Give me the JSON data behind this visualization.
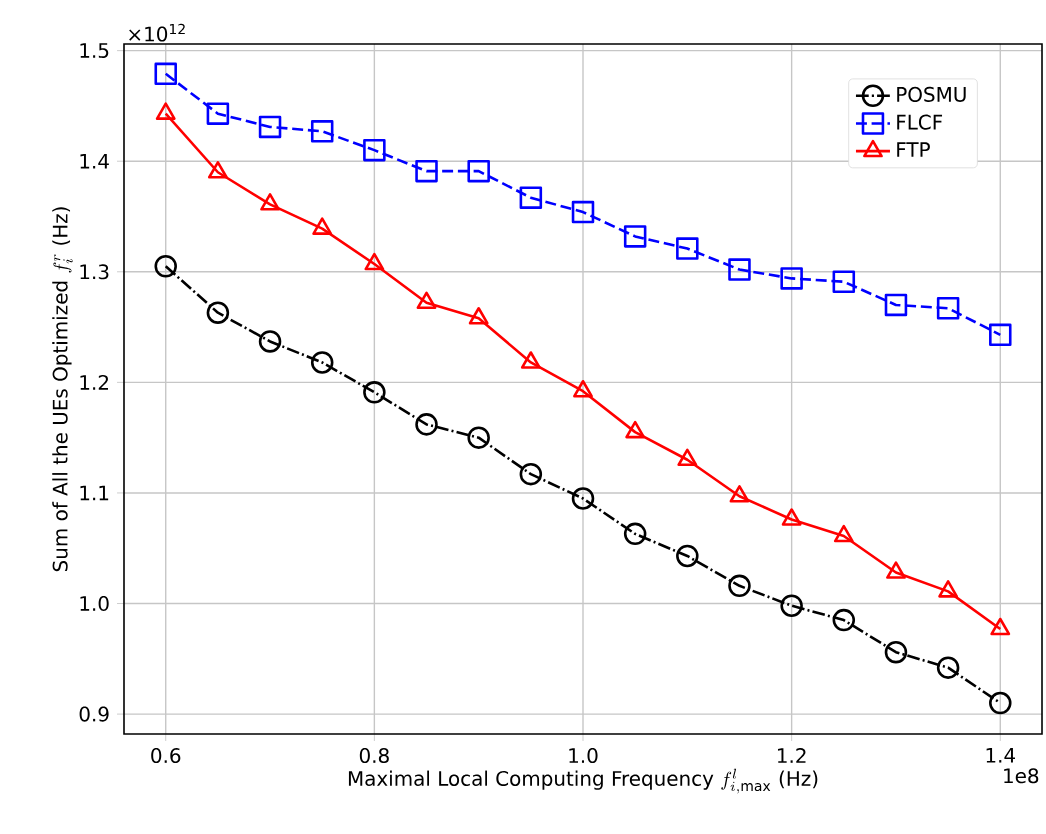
{
  "chart_data": {
    "type": "line",
    "xlabel": "\\text{Maximal Local Computing Frequency }f^{l}_{i,\\max}\\text{ (Hz)}",
    "ylabel": "\\text{Sum of All the UEs Optimized }f^{r}_{i}\\text{ (Hz)}",
    "annotations": [
      "×10$^{12}$",
      "1e8"
    ],
    "x": [
      0.6,
      0.65,
      0.7,
      0.75,
      0.8,
      0.85,
      0.9,
      0.95,
      1.0,
      1.05,
      1.1,
      1.15,
      1.2,
      1.25,
      1.3,
      1.35,
      1.4
    ],
    "series": [
      {
        "name": "POSMU",
        "color": "#000000",
        "marker": "circle",
        "line_style": "dashdot",
        "values": [
          1.305,
          1.263,
          1.237,
          1.218,
          1.191,
          1.162,
          1.15,
          1.117,
          1.095,
          1.063,
          1.043,
          1.016,
          0.998,
          0.985,
          0.956,
          0.942,
          0.91
        ]
      },
      {
        "name": "FLCF",
        "color": "#0000ff",
        "marker": "square",
        "line_style": "dashed",
        "values": [
          1.479,
          1.443,
          1.431,
          1.427,
          1.41,
          1.391,
          1.391,
          1.367,
          1.354,
          1.332,
          1.321,
          1.302,
          1.294,
          1.291,
          1.27,
          1.267,
          1.243
        ]
      },
      {
        "name": "FTP",
        "color": "#ff0000",
        "marker": "triangle",
        "line_style": "solid",
        "values": [
          1.443,
          1.39,
          1.361,
          1.339,
          1.307,
          1.272,
          1.258,
          1.218,
          1.192,
          1.155,
          1.13,
          1.097,
          1.076,
          1.061,
          1.028,
          1.011,
          0.977
        ]
      }
    ],
    "xlim": [
      0.56,
      1.44
    ],
    "ylim": [
      0.882,
      1.506
    ],
    "xticks": [
      {
        "value": 0.6,
        "label": "0.6"
      },
      {
        "value": 0.8,
        "label": "0.8"
      },
      {
        "value": 1.0,
        "label": "1.0"
      },
      {
        "value": 1.2,
        "label": "1.2"
      },
      {
        "value": 1.4,
        "label": "1.4"
      }
    ],
    "yticks": [
      {
        "value": 0.9,
        "label": "0.9"
      },
      {
        "value": 1.0,
        "label": "1.0"
      },
      {
        "value": 1.1,
        "label": "1.1"
      },
      {
        "value": 1.2,
        "label": "1.2"
      },
      {
        "value": 1.3,
        "label": "1.3"
      },
      {
        "value": 1.4,
        "label": "1.4"
      },
      {
        "value": 1.5,
        "label": "1.5"
      }
    ],
    "grid": true,
    "legend": "top right"
  }
}
